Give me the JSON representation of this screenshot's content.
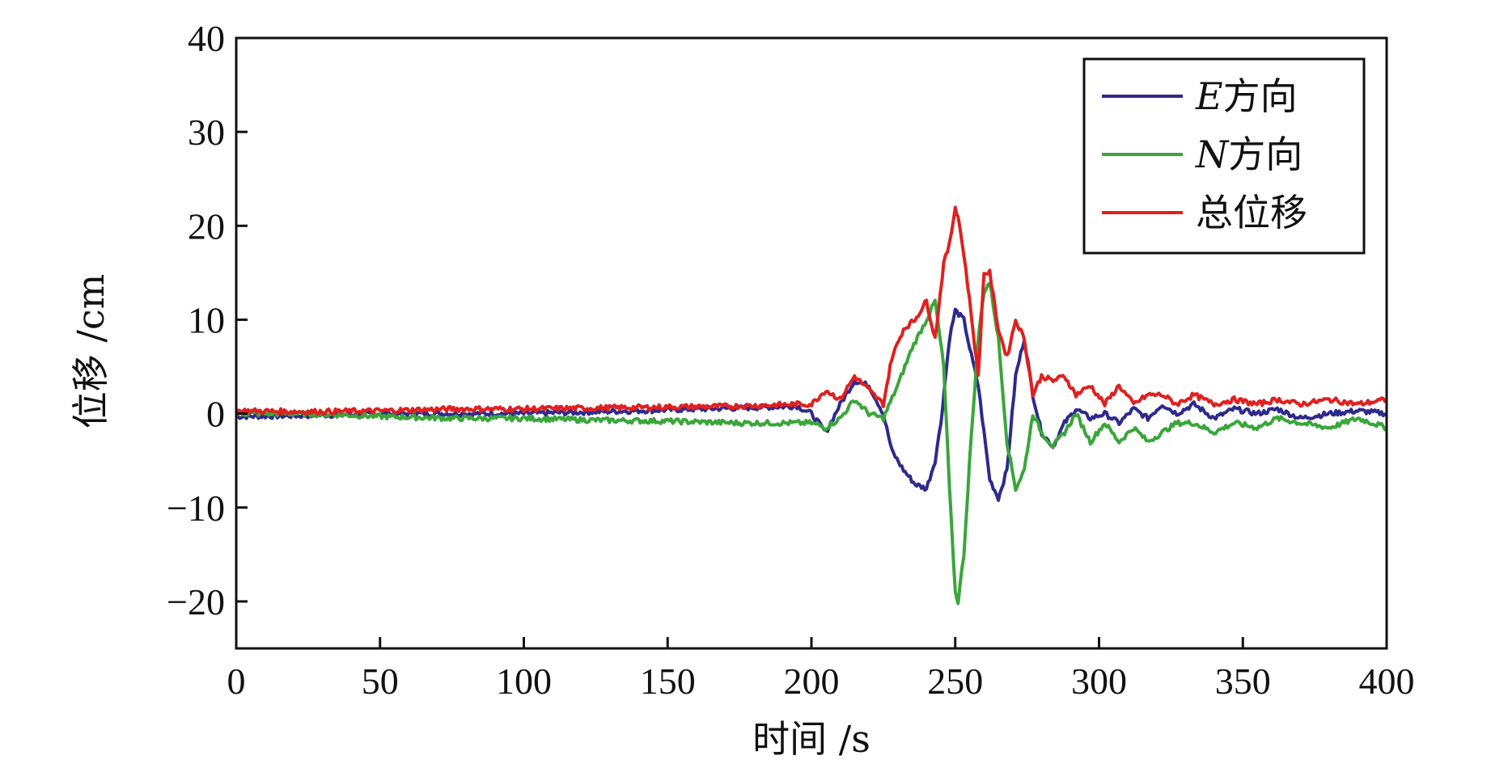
{
  "chart_data": {
    "type": "line",
    "xlabel": "时间 /s",
    "ylabel": "位移 /cm",
    "xlim": [
      0,
      400
    ],
    "ylim": [
      -25,
      40
    ],
    "xticks": [
      0,
      50,
      100,
      150,
      200,
      250,
      300,
      350,
      400
    ],
    "yticks": [
      -20,
      -10,
      0,
      10,
      20,
      30,
      40
    ],
    "ytick_labels": [
      "−20",
      "−10",
      "0",
      "10",
      "20",
      "30",
      "40"
    ],
    "grid": false,
    "legend_position": "top-right",
    "series": [
      {
        "name": "E方向",
        "legend_italic": "E",
        "legend_text": "方向",
        "color": "#2e2a8c",
        "x": [
          0,
          25,
          50,
          75,
          100,
          125,
          150,
          175,
          195,
          200,
          205,
          210,
          215,
          220,
          225,
          228,
          232,
          236,
          240,
          243,
          245,
          248,
          250,
          253,
          255,
          258,
          260,
          262,
          265,
          268,
          271,
          274,
          277,
          280,
          284,
          288,
          292,
          297,
          302,
          307,
          312,
          317,
          322,
          327,
          333,
          340,
          347,
          355,
          362,
          370,
          380,
          390,
          400
        ],
        "y": [
          -0.3,
          -0.2,
          0,
          0,
          0,
          0.2,
          0.4,
          0.6,
          0.8,
          0,
          -2,
          1,
          3.5,
          3,
          0,
          -4,
          -6,
          -7.5,
          -8,
          -5,
          -1,
          8,
          11,
          10,
          7,
          3,
          -2,
          -7,
          -9,
          -6,
          4,
          8,
          2,
          -2,
          -3.5,
          -1,
          0.5,
          -0.5,
          0,
          -1,
          0.5,
          -0.5,
          1,
          0,
          1,
          -0.5,
          0.5,
          0,
          0.5,
          -0.5,
          0,
          0.3,
          0
        ]
      },
      {
        "name": "N方向",
        "legend_italic": "N",
        "legend_text": "方向",
        "color": "#3aa63a",
        "x": [
          0,
          25,
          50,
          75,
          100,
          125,
          150,
          175,
          195,
          200,
          205,
          210,
          215,
          220,
          225,
          230,
          235,
          240,
          243,
          246,
          248,
          250,
          251,
          253,
          255,
          258,
          260,
          262,
          265,
          268,
          271,
          274,
          277,
          280,
          284,
          288,
          292,
          297,
          302,
          307,
          312,
          317,
          322,
          327,
          333,
          340,
          347,
          355,
          362,
          370,
          380,
          390,
          400
        ],
        "y": [
          0,
          0,
          -0.3,
          -0.5,
          -0.5,
          -0.7,
          -0.8,
          -1,
          -1,
          -1,
          -1.5,
          -0.5,
          1.5,
          0,
          -0.5,
          3,
          7,
          10,
          12,
          5,
          -8,
          -19,
          -20,
          -15,
          -5,
          8,
          13,
          14,
          8,
          -3,
          -8,
          -6,
          0,
          -2,
          -3.5,
          -2,
          0,
          -3,
          -1,
          -3,
          -1.5,
          -3,
          -2,
          -1,
          -1,
          -2,
          -1,
          -1.5,
          -0.5,
          -1,
          -1.5,
          -0.5,
          -1.5
        ]
      },
      {
        "name": "总位移",
        "legend_italic": "",
        "legend_text": "总位移",
        "color": "#e02020",
        "x": [
          0,
          25,
          50,
          75,
          100,
          125,
          150,
          175,
          195,
          200,
          205,
          210,
          215,
          220,
          225,
          228,
          232,
          236,
          240,
          243,
          246,
          248,
          250,
          251,
          253,
          255,
          258,
          260,
          262,
          265,
          268,
          271,
          274,
          277,
          280,
          284,
          288,
          292,
          297,
          302,
          307,
          312,
          317,
          322,
          327,
          333,
          340,
          347,
          355,
          362,
          370,
          380,
          390,
          400
        ],
        "y": [
          0.3,
          0.2,
          0.3,
          0.5,
          0.5,
          0.6,
          0.7,
          0.8,
          1,
          1,
          2.5,
          1.5,
          4,
          2.5,
          1,
          6,
          9,
          10,
          12,
          8,
          16,
          18,
          22,
          21,
          17,
          12,
          4,
          15,
          15,
          9,
          6,
          10,
          8,
          2,
          4,
          3.5,
          4,
          2,
          3,
          1,
          3,
          1,
          2,
          2,
          1,
          2,
          1,
          1.5,
          1,
          1.5,
          1,
          1.5,
          1,
          1.5
        ]
      }
    ]
  }
}
